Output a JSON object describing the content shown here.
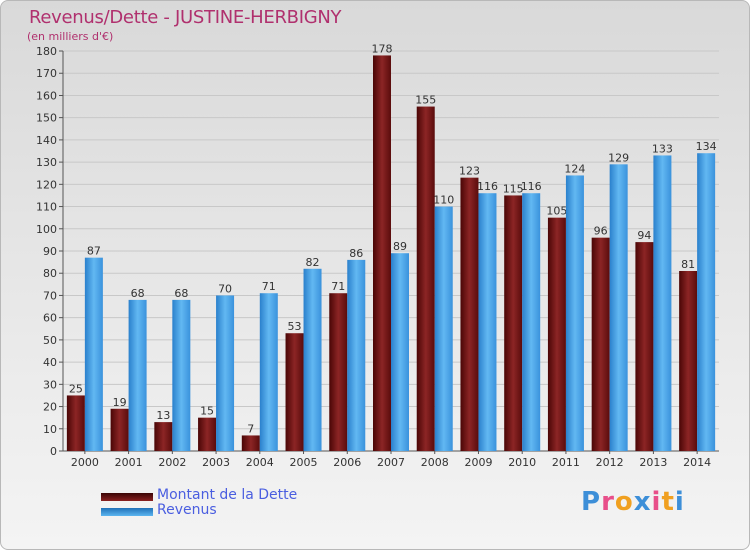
{
  "chart_data": {
    "type": "bar",
    "title": "Revenus/Dette - JUSTINE-HERBIGNY",
    "subtitle": "(en milliers d'€)",
    "categories": [
      "2000",
      "2001",
      "2002",
      "2003",
      "2004",
      "2005",
      "2006",
      "2007",
      "2008",
      "2009",
      "2010",
      "2011",
      "2012",
      "2013",
      "2014"
    ],
    "series": [
      {
        "name": "Montant de la Dette",
        "color": "#7a1515",
        "values": [
          25,
          19,
          13,
          15,
          7,
          53,
          71,
          178,
          155,
          123,
          115,
          105,
          96,
          94,
          81
        ]
      },
      {
        "name": "Revenus",
        "color": "#3d9be0",
        "values": [
          87,
          68,
          68,
          70,
          71,
          82,
          86,
          89,
          110,
          116,
          116,
          124,
          129,
          133,
          134
        ]
      }
    ],
    "ylim": [
      0,
      180
    ],
    "yticks": [
      0,
      10,
      20,
      30,
      40,
      50,
      60,
      70,
      80,
      90,
      100,
      110,
      120,
      130,
      140,
      150,
      160,
      170,
      180
    ],
    "grid": true,
    "legend_position": "bottom-left"
  },
  "logo": {
    "letters": [
      {
        "ch": "P",
        "color": "#3d8fd8"
      },
      {
        "ch": "r",
        "color": "#e84f8a"
      },
      {
        "ch": "o",
        "color": "#f0a020"
      },
      {
        "ch": "x",
        "color": "#3d8fd8"
      },
      {
        "ch": "i",
        "color": "#e84f8a"
      },
      {
        "ch": "t",
        "color": "#f0a020"
      },
      {
        "ch": "i",
        "color": "#3d8fd8"
      }
    ]
  }
}
